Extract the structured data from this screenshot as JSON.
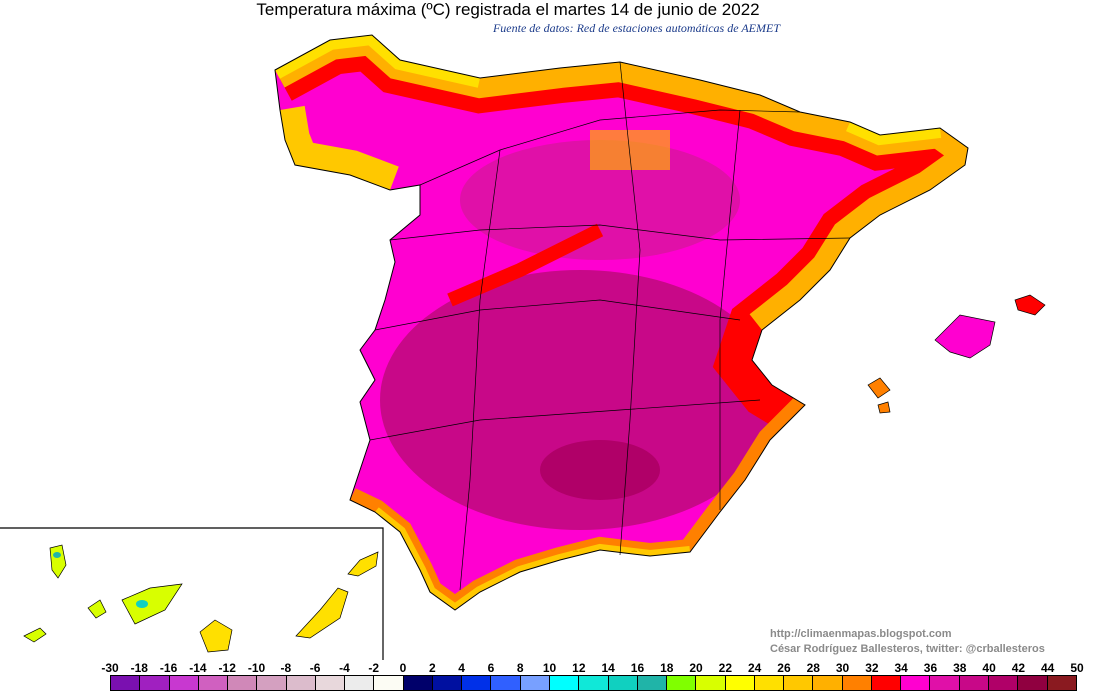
{
  "title": "Temperatura máxima (ºC) registrada el martes 14 de junio de 2022",
  "subtitle": "Fuente de datos: Red de estaciones automáticas de AEMET",
  "credits": {
    "url": "http://climaenmapas.blogspot.com",
    "author": "César Rodríguez Ballesteros, twitter: @crballesteros"
  },
  "legend": {
    "labels": [
      "-30",
      "-18",
      "-16",
      "-14",
      "-12",
      "-10",
      "-8",
      "-6",
      "-4",
      "-2",
      "0",
      "2",
      "4",
      "6",
      "8",
      "10",
      "12",
      "14",
      "16",
      "18",
      "20",
      "22",
      "24",
      "26",
      "28",
      "30",
      "32",
      "34",
      "36",
      "38",
      "40",
      "42",
      "44",
      "50"
    ],
    "colors": [
      "#7a10b0",
      "#a020c0",
      "#c838d0",
      "#d060c0",
      "#d088b8",
      "#d4a0c0",
      "#dcbccc",
      "#e8d8dc",
      "#ececec",
      "#fcfcf4",
      "#00006a",
      "#0010a0",
      "#0030e8",
      "#3060ff",
      "#78a0ff",
      "#00ffff",
      "#10e8d8",
      "#10d0c0",
      "#20b4a8",
      "#80ff00",
      "#d8ff00",
      "#ffff00",
      "#ffe000",
      "#ffc800",
      "#ffb000",
      "#ff8000",
      "#ff0000",
      "#ff00d0",
      "#e010a8",
      "#c80888",
      "#b00068",
      "#900040",
      "#8a1a20"
    ]
  },
  "map_colors": {
    "coast_low": "#ffe000",
    "coast_mid": "#ff8000",
    "hot": "#ff0000",
    "very_hot": "#ff00d0",
    "extreme": "#c80888",
    "peak": "#b00068"
  }
}
